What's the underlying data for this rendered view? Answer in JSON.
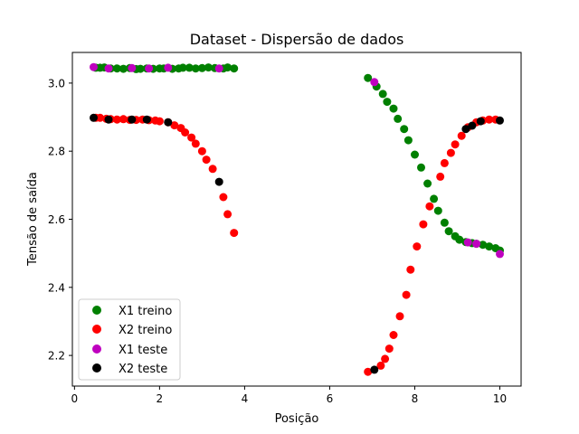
{
  "chart_data": {
    "type": "scatter",
    "title": "Dataset - Dispersão de dados",
    "xlabel": "Posição",
    "ylabel": "Tensão de saída",
    "xlim": [
      -0.05,
      10.5
    ],
    "ylim": [
      2.11,
      3.09
    ],
    "xticks": [
      0,
      2,
      4,
      6,
      8,
      10
    ],
    "yticks": [
      2.2,
      2.4,
      2.6,
      2.8,
      3.0
    ],
    "xtick_labels": [
      "0",
      "2",
      "4",
      "6",
      "8",
      "10"
    ],
    "ytick_labels": [
      "2.2",
      "2.4",
      "2.6",
      "2.8",
      "3.0"
    ],
    "grid": false,
    "legend_position": "bottom-left",
    "series": [
      {
        "name": "X1 treino",
        "color": "#008000",
        "points": [
          [
            0.5,
            3.045
          ],
          [
            0.6,
            3.045
          ],
          [
            0.7,
            3.046
          ],
          [
            0.85,
            3.043
          ],
          [
            1.0,
            3.043
          ],
          [
            1.15,
            3.042
          ],
          [
            1.3,
            3.044
          ],
          [
            1.45,
            3.041
          ],
          [
            1.55,
            3.042
          ],
          [
            1.7,
            3.043
          ],
          [
            1.85,
            3.042
          ],
          [
            2.0,
            3.043
          ],
          [
            2.1,
            3.043
          ],
          [
            2.3,
            3.042
          ],
          [
            2.45,
            3.043
          ],
          [
            2.55,
            3.045
          ],
          [
            2.7,
            3.045
          ],
          [
            2.85,
            3.043
          ],
          [
            3.0,
            3.044
          ],
          [
            3.15,
            3.046
          ],
          [
            3.3,
            3.044
          ],
          [
            3.5,
            3.043
          ],
          [
            3.6,
            3.046
          ],
          [
            3.75,
            3.043
          ],
          [
            6.9,
            3.015
          ],
          [
            7.1,
            2.99
          ],
          [
            7.25,
            2.968
          ],
          [
            7.35,
            2.945
          ],
          [
            7.5,
            2.925
          ],
          [
            7.6,
            2.895
          ],
          [
            7.75,
            2.865
          ],
          [
            7.85,
            2.832
          ],
          [
            8.0,
            2.79
          ],
          [
            8.15,
            2.752
          ],
          [
            8.3,
            2.705
          ],
          [
            8.45,
            2.66
          ],
          [
            8.55,
            2.625
          ],
          [
            8.7,
            2.59
          ],
          [
            8.8,
            2.565
          ],
          [
            8.95,
            2.55
          ],
          [
            9.05,
            2.54
          ],
          [
            9.2,
            2.533
          ],
          [
            9.35,
            2.53
          ],
          [
            9.45,
            2.528
          ],
          [
            9.6,
            2.525
          ],
          [
            9.75,
            2.52
          ],
          [
            9.9,
            2.515
          ],
          [
            10.0,
            2.508
          ]
        ]
      },
      {
        "name": "X2 treino",
        "color": "#ff0000",
        "points": [
          [
            0.5,
            2.898
          ],
          [
            0.6,
            2.898
          ],
          [
            0.75,
            2.895
          ],
          [
            0.85,
            2.894
          ],
          [
            1.0,
            2.893
          ],
          [
            1.15,
            2.894
          ],
          [
            1.3,
            2.892
          ],
          [
            1.45,
            2.892
          ],
          [
            1.6,
            2.893
          ],
          [
            1.75,
            2.891
          ],
          [
            1.9,
            2.89
          ],
          [
            2.0,
            2.888
          ],
          [
            2.2,
            2.885
          ],
          [
            2.35,
            2.876
          ],
          [
            2.5,
            2.868
          ],
          [
            2.6,
            2.855
          ],
          [
            2.75,
            2.84
          ],
          [
            2.85,
            2.822
          ],
          [
            3.0,
            2.8
          ],
          [
            3.1,
            2.775
          ],
          [
            3.25,
            2.748
          ],
          [
            3.5,
            2.665
          ],
          [
            3.6,
            2.615
          ],
          [
            3.75,
            2.56
          ],
          [
            6.9,
            2.152
          ],
          [
            7.2,
            2.17
          ],
          [
            7.3,
            2.19
          ],
          [
            7.4,
            2.22
          ],
          [
            7.5,
            2.26
          ],
          [
            7.65,
            2.315
          ],
          [
            7.8,
            2.378
          ],
          [
            7.9,
            2.452
          ],
          [
            8.05,
            2.52
          ],
          [
            8.2,
            2.585
          ],
          [
            8.35,
            2.638
          ],
          [
            8.6,
            2.725
          ],
          [
            8.7,
            2.765
          ],
          [
            8.85,
            2.795
          ],
          [
            8.95,
            2.82
          ],
          [
            9.1,
            2.845
          ],
          [
            9.25,
            2.87
          ],
          [
            9.45,
            2.885
          ],
          [
            9.6,
            2.89
          ],
          [
            9.75,
            2.893
          ],
          [
            9.9,
            2.893
          ]
        ]
      },
      {
        "name": "X1 teste",
        "color": "#bf00bf",
        "points": [
          [
            0.45,
            3.047
          ],
          [
            0.8,
            3.043
          ],
          [
            1.35,
            3.044
          ],
          [
            1.75,
            3.043
          ],
          [
            2.2,
            3.045
          ],
          [
            3.4,
            3.043
          ],
          [
            7.05,
            3.003
          ],
          [
            9.25,
            2.532
          ],
          [
            9.45,
            2.528
          ],
          [
            10.0,
            2.498
          ]
        ]
      },
      {
        "name": "X2 teste",
        "color": "#000000",
        "points": [
          [
            0.45,
            2.898
          ],
          [
            0.8,
            2.893
          ],
          [
            1.35,
            2.893
          ],
          [
            1.7,
            2.893
          ],
          [
            2.2,
            2.885
          ],
          [
            3.4,
            2.71
          ],
          [
            7.05,
            2.158
          ],
          [
            9.2,
            2.865
          ],
          [
            9.35,
            2.875
          ],
          [
            9.55,
            2.888
          ],
          [
            10.0,
            2.89
          ]
        ]
      }
    ]
  }
}
